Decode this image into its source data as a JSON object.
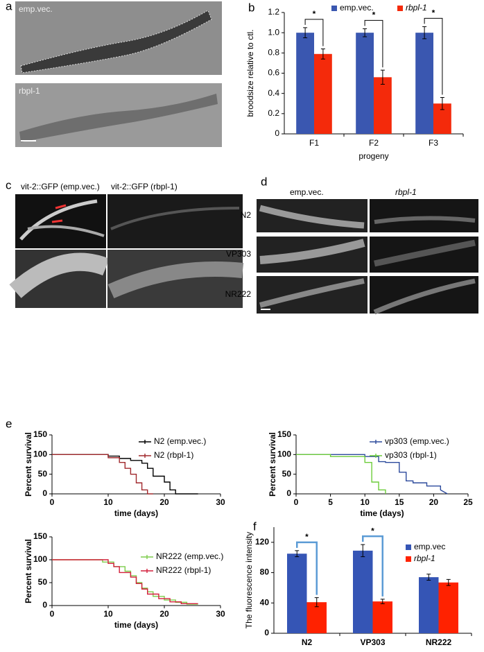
{
  "figure": {
    "panel_labels": [
      "a",
      "b",
      "c",
      "d",
      "e",
      "f"
    ],
    "panel_a": {
      "labels": [
        "emp.vec.",
        "rbpl-1"
      ]
    },
    "panel_c": {
      "labels": [
        "vit-2::GFP (emp.vec.)",
        "vit-2::GFP (rbpl-1)"
      ]
    },
    "panel_d": {
      "columns": [
        "emp.vec.",
        "rbpl-1"
      ],
      "rows": [
        "N2",
        "VP303",
        "NR222"
      ]
    }
  },
  "chart_data": [
    {
      "type": "bar",
      "categories": [
        "F1",
        "F2",
        "F3"
      ],
      "x_label": "progeny",
      "y_label": "broodsize relative to ctl.",
      "series": [
        {
          "name": "emp.vec.",
          "color": "#3a57b0",
          "values": [
            1.0,
            1.0,
            1.0
          ],
          "errors": [
            0.05,
            0.04,
            0.06
          ]
        },
        {
          "name": "rbpl-1",
          "color": "#f42a0b",
          "values": [
            0.79,
            0.56,
            0.3
          ],
          "errors": [
            0.05,
            0.07,
            0.06
          ]
        }
      ],
      "ylim": [
        0,
        1.2
      ],
      "yticks": [
        0,
        0.2,
        0.4,
        0.6,
        0.8,
        {
          "value": 1,
          "label": "1.0"
        },
        1.2
      ],
      "annotations": [
        "*",
        "*",
        "*"
      ],
      "legend": "top"
    },
    {
      "type": "line",
      "x_label": "time (days)",
      "y_label": "Percent survival",
      "series": [
        {
          "name": "N2 (emp.vec.)",
          "color": "#000000",
          "x": [
            0,
            10,
            10,
            12,
            12,
            14,
            14,
            16,
            16,
            17,
            17,
            18,
            18,
            20,
            20,
            21,
            21,
            22,
            22,
            26
          ],
          "values": [
            100,
            100,
            96,
            96,
            90,
            90,
            85,
            85,
            78,
            78,
            65,
            65,
            45,
            45,
            30,
            30,
            10,
            10,
            0,
            0
          ]
        },
        {
          "name": "N2 (rbpl-1)",
          "color": "#a0282c",
          "x": [
            0,
            10,
            10,
            12,
            12,
            13,
            13,
            14,
            14,
            15,
            15,
            16,
            16,
            17,
            17,
            18
          ],
          "values": [
            100,
            100,
            92,
            92,
            80,
            80,
            65,
            65,
            50,
            50,
            28,
            28,
            10,
            10,
            0,
            0
          ]
        }
      ],
      "xlim": [
        0,
        30
      ],
      "xticks": [
        0,
        10,
        20,
        30
      ],
      "ylim": [
        0,
        150
      ],
      "yticks": [
        0,
        50,
        100,
        150
      ],
      "legend": "upper right"
    },
    {
      "type": "line",
      "x_label": "time (days)",
      "y_label": "Percent survival",
      "series": [
        {
          "name": "vp303 (emp.vec.)",
          "color": "#2c4a9c",
          "x": [
            0,
            10,
            10,
            12,
            12,
            13,
            13,
            15,
            15,
            16,
            16,
            17,
            17,
            19,
            19,
            21,
            21,
            22
          ],
          "values": [
            100,
            100,
            95,
            95,
            82,
            82,
            80,
            80,
            55,
            55,
            33,
            33,
            28,
            28,
            20,
            20,
            10,
            0
          ]
        },
        {
          "name": "vp303 (rbpl-1)",
          "color": "#6ccc3a",
          "x": [
            0,
            5,
            5,
            10,
            10,
            11,
            11,
            12,
            12,
            13,
            13
          ],
          "values": [
            100,
            100,
            95,
            95,
            80,
            80,
            30,
            30,
            10,
            10,
            0
          ]
        }
      ],
      "xlim": [
        0,
        25
      ],
      "xticks": [
        0,
        5,
        10,
        15,
        20,
        25
      ],
      "ylim": [
        0,
        150
      ],
      "yticks": [
        0,
        50,
        100,
        150
      ],
      "legend": "upper right"
    },
    {
      "type": "line",
      "x_label": "time (days)",
      "y_label": "Percent survival",
      "series": [
        {
          "name": "NR222 (emp.vec.)",
          "color": "#7ccc4a",
          "x": [
            0,
            9,
            9,
            11,
            11,
            13,
            13,
            14,
            14,
            15,
            15,
            16,
            16,
            17,
            17,
            18,
            18,
            20,
            20,
            22,
            22,
            24,
            24,
            26
          ],
          "values": [
            100,
            100,
            95,
            95,
            85,
            85,
            75,
            75,
            65,
            65,
            50,
            50,
            38,
            38,
            30,
            30,
            20,
            20,
            12,
            12,
            7,
            7,
            3,
            3
          ]
        },
        {
          "name": "NR222 (rbpl-1)",
          "color": "#d41e3a",
          "x": [
            0,
            10,
            10,
            11,
            11,
            12,
            12,
            14,
            14,
            15,
            15,
            16,
            16,
            17,
            17,
            19,
            19,
            21,
            21,
            23,
            23,
            26
          ],
          "values": [
            100,
            100,
            92,
            92,
            85,
            85,
            72,
            72,
            62,
            62,
            48,
            48,
            36,
            36,
            25,
            25,
            15,
            15,
            8,
            8,
            4,
            4
          ]
        }
      ],
      "xlim": [
        0,
        30
      ],
      "xticks": [
        0,
        10,
        20,
        30
      ],
      "ylim": [
        0,
        150
      ],
      "yticks": [
        0,
        50,
        100,
        150
      ],
      "legend": "upper right"
    },
    {
      "type": "bar",
      "categories": [
        "N2",
        "VP303",
        "NR222"
      ],
      "y_label": "The fluorescence intensity",
      "series": [
        {
          "name": "emp.vec",
          "color": "#3555b5",
          "values": [
            105,
            109,
            74
          ],
          "errors": [
            4,
            8,
            4
          ]
        },
        {
          "name": "rbpl-1",
          "color": "#ff2200",
          "values": [
            41,
            42,
            67
          ],
          "errors": [
            6,
            3,
            4
          ]
        }
      ],
      "ylim": [
        0,
        140
      ],
      "yticks": [
        0,
        40,
        80,
        120
      ],
      "annotations": [
        "*",
        "*"
      ],
      "legend": "upper right"
    }
  ]
}
